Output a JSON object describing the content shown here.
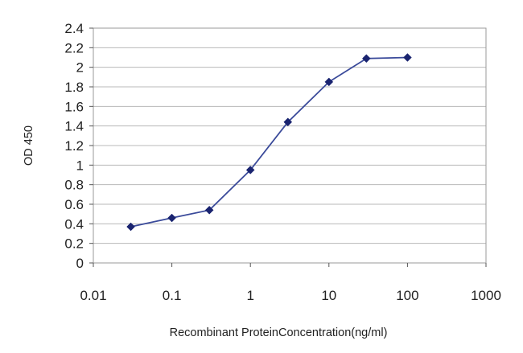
{
  "chart_data": {
    "type": "line",
    "title": "",
    "xlabel": "Recombinant ProteinConcentration(ng/ml)",
    "ylabel": "OD 450",
    "xscale": "log",
    "xlim": [
      0.01,
      1000
    ],
    "ylim": [
      0,
      2.4
    ],
    "x_ticks": [
      "0.01",
      "0.1",
      "1",
      "10",
      "100",
      "1000"
    ],
    "y_ticks": [
      "0",
      "0.2",
      "0.4",
      "0.6",
      "0.8",
      "1",
      "1.2",
      "1.4",
      "1.6",
      "1.8",
      "2",
      "2.2",
      "2.4"
    ],
    "grid": "horizontal",
    "legend": "none",
    "series": [
      {
        "x": [
          0.03,
          0.1,
          0.3,
          1,
          3,
          10,
          30,
          100
        ],
        "y": [
          0.37,
          0.46,
          0.54,
          0.95,
          1.44,
          1.85,
          2.09,
          2.1
        ]
      }
    ],
    "colors": {
      "line": "#3a4a9a",
      "marker": "#1a2470",
      "grid": "#b8b8b8",
      "frame": "#9a9a9a"
    }
  }
}
